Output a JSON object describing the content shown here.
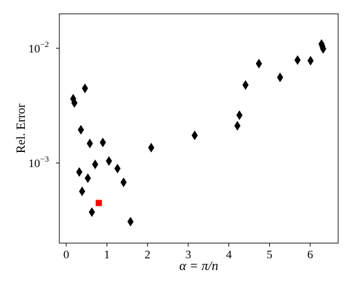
{
  "chart_data": {
    "type": "scatter",
    "xlabel": "α = π/n",
    "ylabel": "Rel. Error",
    "xlim": [
      -0.17,
      6.69
    ],
    "ylim": [
      0.0002,
      0.02
    ],
    "yscale": "log",
    "xticks": [
      0,
      1,
      2,
      3,
      4,
      5,
      6
    ],
    "yticks": [
      {
        "value": 0.001,
        "label": "10",
        "exponent": "−3"
      },
      {
        "value": 0.01,
        "label": "10",
        "exponent": "−2"
      }
    ],
    "series": [
      {
        "color": "#000000",
        "marker": "diamond",
        "x": [
          0.17,
          0.2,
          0.46,
          0.36,
          0.32,
          0.39,
          0.53,
          0.58,
          0.71,
          0.63,
          0.9,
          1.05,
          1.26,
          1.41,
          1.58,
          2.09,
          3.16,
          4.26,
          4.21,
          4.41,
          4.74,
          5.26,
          5.69,
          6.01,
          6.28,
          6.3,
          6.32
        ],
        "values": [
          0.00363,
          0.00334,
          0.00448,
          0.00195,
          0.000835,
          0.000566,
          0.000737,
          0.00148,
          0.000973,
          0.000373,
          0.00151,
          0.00104,
          0.000895,
          0.000678,
          0.000308,
          0.00136,
          0.00174,
          0.00261,
          0.00211,
          0.00479,
          0.00736,
          0.00558,
          0.0079,
          0.0078,
          0.0109,
          0.0104,
          0.0099
        ]
      },
      {
        "color": "#ff0000",
        "marker": "square",
        "x": [
          0.8
        ],
        "values": [
          0.000448
        ]
      }
    ]
  }
}
